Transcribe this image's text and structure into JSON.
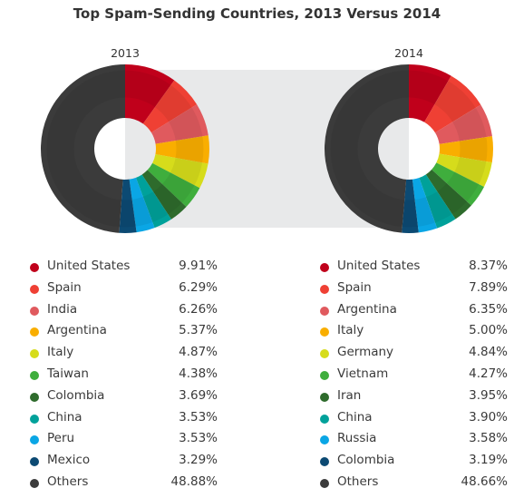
{
  "chart_data": {
    "type": "pie",
    "title": "Top Spam-Sending Countries, 2013 Versus 2014",
    "charts": [
      {
        "year": "2013",
        "slices": [
          {
            "name": "United States",
            "value": 9.91,
            "label": "9.91%",
            "color": "#c0001b"
          },
          {
            "name": "Spain",
            "value": 6.29,
            "label": "6.29%",
            "color": "#ef4034"
          },
          {
            "name": "India",
            "value": 6.26,
            "label": "6.26%",
            "color": "#e05a5e"
          },
          {
            "name": "Argentina",
            "value": 5.37,
            "label": "5.37%",
            "color": "#f9ae00"
          },
          {
            "name": "Italy",
            "value": 4.87,
            "label": "4.87%",
            "color": "#d6dc1b"
          },
          {
            "name": "Taiwan",
            "value": 4.38,
            "label": "4.38%",
            "color": "#3fae3d"
          },
          {
            "name": "Colombia",
            "value": 3.69,
            "label": "3.69%",
            "color": "#2e6b2c"
          },
          {
            "name": "China",
            "value": 3.53,
            "label": "3.53%",
            "color": "#00a19a"
          },
          {
            "name": "Peru",
            "value": 3.53,
            "label": "3.53%",
            "color": "#0aa6e5"
          },
          {
            "name": "Mexico",
            "value": 3.29,
            "label": "3.29%",
            "color": "#0c4a73"
          },
          {
            "name": "Others",
            "value": 48.88,
            "label": "48.88%",
            "color": "#3b3b3b"
          }
        ]
      },
      {
        "year": "2014",
        "slices": [
          {
            "name": "United States",
            "value": 8.37,
            "label": "8.37%",
            "color": "#c0001b"
          },
          {
            "name": "Spain",
            "value": 7.89,
            "label": "7.89%",
            "color": "#ef4034"
          },
          {
            "name": "Argentina",
            "value": 6.35,
            "label": "6.35%",
            "color": "#e05a5e"
          },
          {
            "name": "Italy",
            "value": 5.0,
            "label": "5.00%",
            "color": "#f9ae00"
          },
          {
            "name": "Germany",
            "value": 4.84,
            "label": "4.84%",
            "color": "#d6dc1b"
          },
          {
            "name": "Vietnam",
            "value": 4.27,
            "label": "4.27%",
            "color": "#3fae3d"
          },
          {
            "name": "Iran",
            "value": 3.95,
            "label": "3.95%",
            "color": "#2e6b2c"
          },
          {
            "name": "China",
            "value": 3.9,
            "label": "3.90%",
            "color": "#00a19a"
          },
          {
            "name": "Russia",
            "value": 3.58,
            "label": "3.58%",
            "color": "#0aa6e5"
          },
          {
            "name": "Colombia",
            "value": 3.19,
            "label": "3.19%",
            "color": "#0c4a73"
          },
          {
            "name": "Others",
            "value": 48.66,
            "label": "48.66%",
            "color": "#3b3b3b"
          }
        ]
      }
    ],
    "connector_color": "#e8e9ea"
  }
}
